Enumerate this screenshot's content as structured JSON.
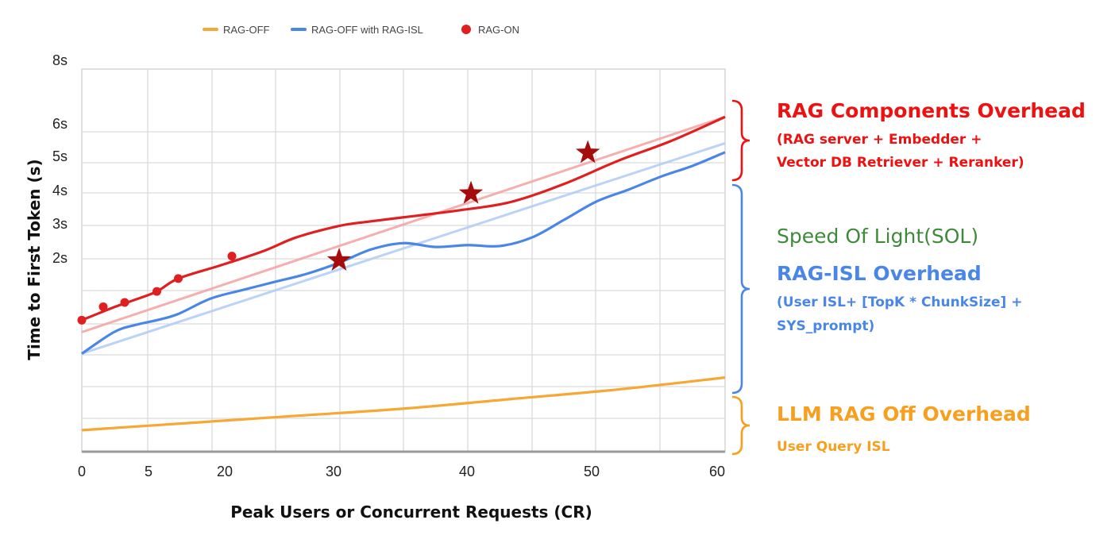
{
  "chart_data": {
    "type": "line",
    "title": "",
    "xlabel": "Peak Users or Concurrent Requests (CR)",
    "ylabel": "Time to First Token (s)",
    "xlim": [
      0,
      60
    ],
    "x_ticks": [
      "0",
      "5",
      "20",
      "30",
      "40",
      "50",
      "60"
    ],
    "y_ticks": [
      "8s",
      "6s",
      "5s",
      "4s",
      "3s",
      "2s"
    ],
    "grid": true,
    "legend_position": "top",
    "legend": [
      {
        "label": "RAG-OFF",
        "color": "#f7a733",
        "marker": "dash"
      },
      {
        "label": "RAG-OFF with RAG-ISL",
        "color": "#4a86e8",
        "marker": "dash"
      },
      {
        "label": "RAG-ON",
        "color": "#e02020",
        "marker": "dot"
      }
    ],
    "series": [
      {
        "name": "RAG-OFF",
        "color": "#f7a733",
        "points": [
          [
            0,
            0.45
          ],
          [
            10,
            0.6
          ],
          [
            20,
            0.75
          ],
          [
            30,
            0.9
          ],
          [
            40,
            1.1
          ],
          [
            50,
            1.3
          ],
          [
            60,
            1.55
          ]
        ]
      },
      {
        "name": "RAG-OFF with RAG-ISL",
        "color": "#4a86e8",
        "points": [
          [
            0,
            2.05
          ],
          [
            3,
            2.5
          ],
          [
            5,
            2.65
          ],
          [
            7,
            2.75
          ],
          [
            9,
            2.88
          ],
          [
            12,
            3.2
          ],
          [
            15,
            3.38
          ],
          [
            18,
            3.55
          ],
          [
            21,
            3.72
          ],
          [
            24,
            3.95
          ],
          [
            27,
            4.23
          ],
          [
            30,
            4.36
          ],
          [
            33,
            4.28
          ],
          [
            36,
            4.32
          ],
          [
            39,
            4.3
          ],
          [
            42,
            4.48
          ],
          [
            45,
            4.85
          ],
          [
            48,
            5.23
          ],
          [
            51,
            5.48
          ],
          [
            54,
            5.75
          ],
          [
            57,
            5.98
          ],
          [
            60,
            6.26
          ]
        ]
      },
      {
        "name": "RAG-ON",
        "color": "#e02020",
        "points": [
          [
            0,
            2.75
          ],
          [
            3,
            3.02
          ],
          [
            5,
            3.18
          ],
          [
            7,
            3.35
          ],
          [
            9,
            3.62
          ],
          [
            13,
            3.9
          ],
          [
            17,
            4.2
          ],
          [
            20,
            4.48
          ],
          [
            24,
            4.72
          ],
          [
            26,
            4.79
          ],
          [
            30,
            4.9
          ],
          [
            35,
            5.04
          ],
          [
            40,
            5.22
          ],
          [
            45,
            5.6
          ],
          [
            50,
            6.08
          ],
          [
            55,
            6.5
          ],
          [
            60,
            7.0
          ]
        ],
        "markers": [
          [
            0,
            2.75
          ],
          [
            2,
            3.03
          ],
          [
            4,
            3.12
          ],
          [
            7,
            3.35
          ],
          [
            9,
            3.62
          ],
          [
            14,
            4.09
          ]
        ],
        "stars": [
          [
            24,
            4.0
          ],
          [
            36.3,
            5.4
          ],
          [
            47.2,
            6.25
          ]
        ]
      },
      {
        "name": "",
        "style": "trend",
        "color": "#f5a0a0",
        "points": [
          [
            0,
            2.5
          ],
          [
            60,
            7.0
          ]
        ]
      },
      {
        "name": "",
        "style": "trend",
        "color": "#aecbf5",
        "points": [
          [
            0,
            2.05
          ],
          [
            60,
            6.45
          ]
        ]
      }
    ],
    "annotations": [
      {
        "id": "rag",
        "title": "RAG Components Overhead",
        "lines": [
          "(RAG server + Embedder +",
          "Vector DB Retriever + Reranker)"
        ],
        "color": "#ee1111",
        "bracket": [
          6.36,
          7.0
        ]
      },
      {
        "id": "sol",
        "title": "Speed Of Light(SOL)",
        "lines": [],
        "color": "#3f8a3a"
      },
      {
        "id": "isl",
        "title": "RAG-ISL Overhead",
        "lines": [
          "(User ISL+ [TopK * ChunkSize] +",
          "SYS_prompt)"
        ],
        "color": "#4a86e8",
        "bracket": [
          1.55,
          6.36
        ]
      },
      {
        "id": "off",
        "title": "LLM RAG Off Overhead",
        "lines": [
          "User Query ISL"
        ],
        "color": "#f7a020",
        "bracket": [
          0.0,
          1.55
        ]
      }
    ]
  }
}
